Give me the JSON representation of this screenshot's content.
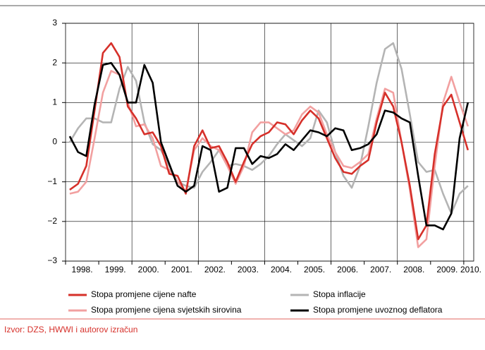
{
  "chart_data": {
    "type": "line",
    "x": [
      1998.125,
      1998.375,
      1998.625,
      1998.875,
      1999.125,
      1999.375,
      1999.625,
      1999.875,
      2000.125,
      2000.375,
      2000.625,
      2000.875,
      2001.125,
      2001.375,
      2001.625,
      2001.875,
      2002.125,
      2002.375,
      2002.625,
      2002.875,
      2003.125,
      2003.375,
      2003.625,
      2003.875,
      2004.125,
      2004.375,
      2004.625,
      2004.875,
      2005.125,
      2005.375,
      2005.625,
      2005.875,
      2006.125,
      2006.375,
      2006.625,
      2006.875,
      2007.125,
      2007.375,
      2007.625,
      2007.875,
      2008.125,
      2008.375,
      2008.625,
      2008.875,
      2009.125,
      2009.375,
      2009.625,
      2009.875,
      2010.125
    ],
    "series": [
      {
        "name": "Stopa promjene cijene nafte",
        "color": "#d6302a",
        "values": [
          -1.2,
          -1.05,
          -0.6,
          0.8,
          2.25,
          2.5,
          2.15,
          0.9,
          0.6,
          0.2,
          0.25,
          -0.1,
          -0.8,
          -0.85,
          -1.3,
          -0.1,
          0.3,
          -0.15,
          -0.1,
          -0.5,
          -1.0,
          -0.5,
          -0.05,
          0.15,
          0.25,
          0.5,
          0.45,
          0.2,
          0.55,
          0.8,
          0.6,
          0.1,
          -0.4,
          -0.75,
          -0.8,
          -0.6,
          -0.45,
          0.5,
          1.25,
          0.9,
          0.0,
          -1.1,
          -2.45,
          -2.1,
          -0.3,
          0.9,
          1.2,
          0.5,
          -0.2
        ]
      },
      {
        "name": "Stopa promjene cijena svjetskih sirovina",
        "color": "#f2a0a0",
        "values": [
          -1.3,
          -1.25,
          -1.0,
          0.1,
          1.25,
          1.8,
          1.7,
          1.0,
          0.4,
          0.45,
          0.1,
          -0.6,
          -0.7,
          -1.0,
          -1.25,
          -0.2,
          0.1,
          -0.1,
          -0.2,
          -0.6,
          -1.05,
          -0.6,
          0.25,
          0.5,
          0.5,
          0.35,
          0.2,
          0.3,
          0.7,
          0.9,
          0.75,
          0.2,
          -0.25,
          -0.6,
          -0.65,
          -0.5,
          -0.3,
          0.6,
          1.35,
          1.25,
          0.0,
          -1.2,
          -2.65,
          -2.45,
          -0.6,
          1.0,
          1.65,
          1.0,
          0.4
        ]
      },
      {
        "name": "Stopa inflacije",
        "color": "#b4b4b4",
        "values": [
          0.0,
          0.35,
          0.6,
          0.6,
          0.5,
          0.5,
          1.35,
          1.9,
          1.55,
          0.5,
          -0.05,
          -0.2,
          -0.6,
          -1.0,
          -1.1,
          -1.15,
          -0.75,
          -0.5,
          -0.2,
          -0.6,
          -0.55,
          -0.6,
          -0.7,
          -0.55,
          -0.35,
          -0.05,
          0.2,
          0.05,
          -0.1,
          0.1,
          0.8,
          0.5,
          -0.25,
          -0.85,
          -1.15,
          -0.6,
          0.4,
          1.5,
          2.35,
          2.5,
          1.85,
          0.7,
          -0.5,
          -0.75,
          -0.7,
          -1.3,
          -1.8,
          -1.3,
          -1.1
        ]
      },
      {
        "name": "Stopa promjene uvoznog deflatora",
        "color": "#000000",
        "values": [
          0.15,
          -0.25,
          -0.35,
          0.95,
          1.95,
          2.0,
          1.7,
          1.0,
          1.0,
          1.95,
          1.5,
          0.0,
          -0.55,
          -1.1,
          -1.25,
          -1.1,
          -0.1,
          -0.2,
          -1.25,
          -1.15,
          -0.15,
          -0.15,
          -0.55,
          -0.35,
          -0.4,
          -0.3,
          -0.05,
          -0.2,
          0.05,
          0.3,
          0.25,
          0.15,
          0.35,
          0.3,
          -0.2,
          -0.15,
          -0.05,
          0.2,
          0.8,
          0.75,
          0.6,
          0.5,
          -0.85,
          -2.1,
          -2.1,
          -2.2,
          -1.8,
          0.1,
          1.0
        ]
      }
    ],
    "xlim": [
      1998,
      2010.3
    ],
    "xticks": [
      {
        "value": 1998,
        "label": "1998."
      },
      {
        "value": 1999,
        "label": "1999."
      },
      {
        "value": 2000,
        "label": "2000."
      },
      {
        "value": 2001,
        "label": "2001."
      },
      {
        "value": 2002,
        "label": "2002."
      },
      {
        "value": 2003,
        "label": "2003."
      },
      {
        "value": 2004,
        "label": "2004."
      },
      {
        "value": 2005,
        "label": "2005."
      },
      {
        "value": 2006,
        "label": "2006."
      },
      {
        "value": 2007,
        "label": "2007."
      },
      {
        "value": 2008,
        "label": "2008."
      },
      {
        "value": 2009,
        "label": "2009."
      },
      {
        "value": 2010,
        "label": "2010."
      }
    ],
    "ylim": [
      -3,
      3
    ],
    "yticks": [
      {
        "value": -3,
        "label": "−3"
      },
      {
        "value": -2,
        "label": "−2"
      },
      {
        "value": -1,
        "label": "−1"
      },
      0,
      1,
      2,
      3
    ],
    "grid": true,
    "source": "Izvor: DZS, HWWI i autorov izračun"
  }
}
